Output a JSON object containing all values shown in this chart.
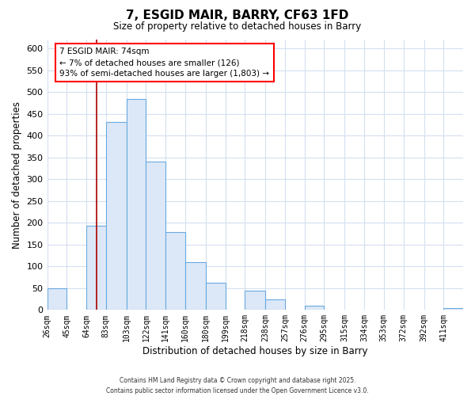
{
  "title": "7, ESGID MAIR, BARRY, CF63 1FD",
  "subtitle": "Size of property relative to detached houses in Barry",
  "xlabel": "Distribution of detached houses by size in Barry",
  "ylabel": "Number of detached properties",
  "bar_color": "#dce8f8",
  "bar_edge_color": "#6aaae0",
  "bin_labels": [
    "26sqm",
    "45sqm",
    "64sqm",
    "83sqm",
    "103sqm",
    "122sqm",
    "141sqm",
    "160sqm",
    "180sqm",
    "199sqm",
    "218sqm",
    "238sqm",
    "257sqm",
    "276sqm",
    "295sqm",
    "315sqm",
    "334sqm",
    "353sqm",
    "372sqm",
    "392sqm",
    "411sqm"
  ],
  "bar_values": [
    50,
    0,
    193,
    432,
    484,
    340,
    178,
    110,
    62,
    0,
    44,
    24,
    0,
    10,
    0,
    0,
    0,
    0,
    0,
    0,
    5
  ],
  "bin_edges": [
    26,
    45,
    64,
    83,
    103,
    122,
    141,
    160,
    180,
    199,
    218,
    238,
    257,
    276,
    295,
    315,
    334,
    353,
    372,
    392,
    411,
    430
  ],
  "vline_x": 74,
  "ylim": [
    0,
    620
  ],
  "yticks": [
    0,
    50,
    100,
    150,
    200,
    250,
    300,
    350,
    400,
    450,
    500,
    550,
    600
  ],
  "annotation_title": "7 ESGID MAIR: 74sqm",
  "annotation_line1": "← 7% of detached houses are smaller (126)",
  "annotation_line2": "93% of semi-detached houses are larger (1,803) →",
  "footer1": "Contains HM Land Registry data © Crown copyright and database right 2025.",
  "footer2": "Contains public sector information licensed under the Open Government Licence v3.0.",
  "background_color": "#ffffff",
  "grid_color": "#d4dff0"
}
